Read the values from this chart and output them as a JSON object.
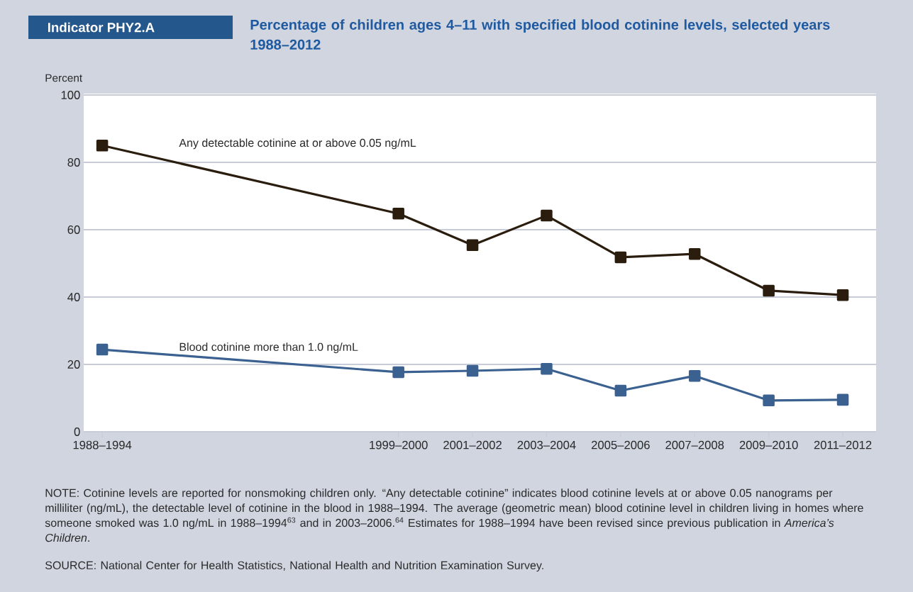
{
  "chart_data": {
    "type": "line",
    "title": "Percentage of children ages 4–11 with specified blood cotinine levels, selected years 1988–2012",
    "ylabel": "Percent",
    "categories": [
      "1988–1994",
      null,
      null,
      null,
      "1999–2000",
      "2001–2002",
      "2003–2004",
      "2005–2006",
      "2007–2008",
      "2009–2010",
      "2011–2012"
    ],
    "ylim": [
      0,
      100
    ],
    "yticks": [
      0,
      20,
      40,
      60,
      80,
      100
    ],
    "series": [
      {
        "name": "Any detectable cotinine at or above 0.05 ng/mL",
        "color": "#2b1d0e",
        "values": [
          85.0,
          null,
          null,
          null,
          64.8,
          55.4,
          64.2,
          51.8,
          52.8,
          41.9,
          40.6
        ]
      },
      {
        "name": "Blood cotinine more than 1.0 ng/mL",
        "color": "#3a6190",
        "values": [
          24.4,
          null,
          null,
          null,
          17.7,
          18.1,
          18.7,
          12.2,
          16.6,
          9.3,
          9.5
        ]
      }
    ],
    "grid": "y",
    "legend": false,
    "marker": "square",
    "line_style": "solid",
    "annotations": [
      "Indicator PHY2.A",
      "NOTE: Cotinine levels are reported for nonsmoking children only. “Any detectable cotinine” indicates blood cotinine levels at or above 0.05 nanograms per milliliter (ng/mL), the detectable level of cotinine in the blood in 1988–1994. The average (geometric mean) blood cotinine level in children living in homes where someone smoked was 1.0 ng/mL in 1988–1994$^{63}$ and in 2003–2006.$^{64}$ Estimates for 1988–1994 have been revised since previous publication in *America’s Children*.",
      "SOURCE: National Center for Health Statistics, National Health and Nutrition Examination Survey."
    ]
  }
}
